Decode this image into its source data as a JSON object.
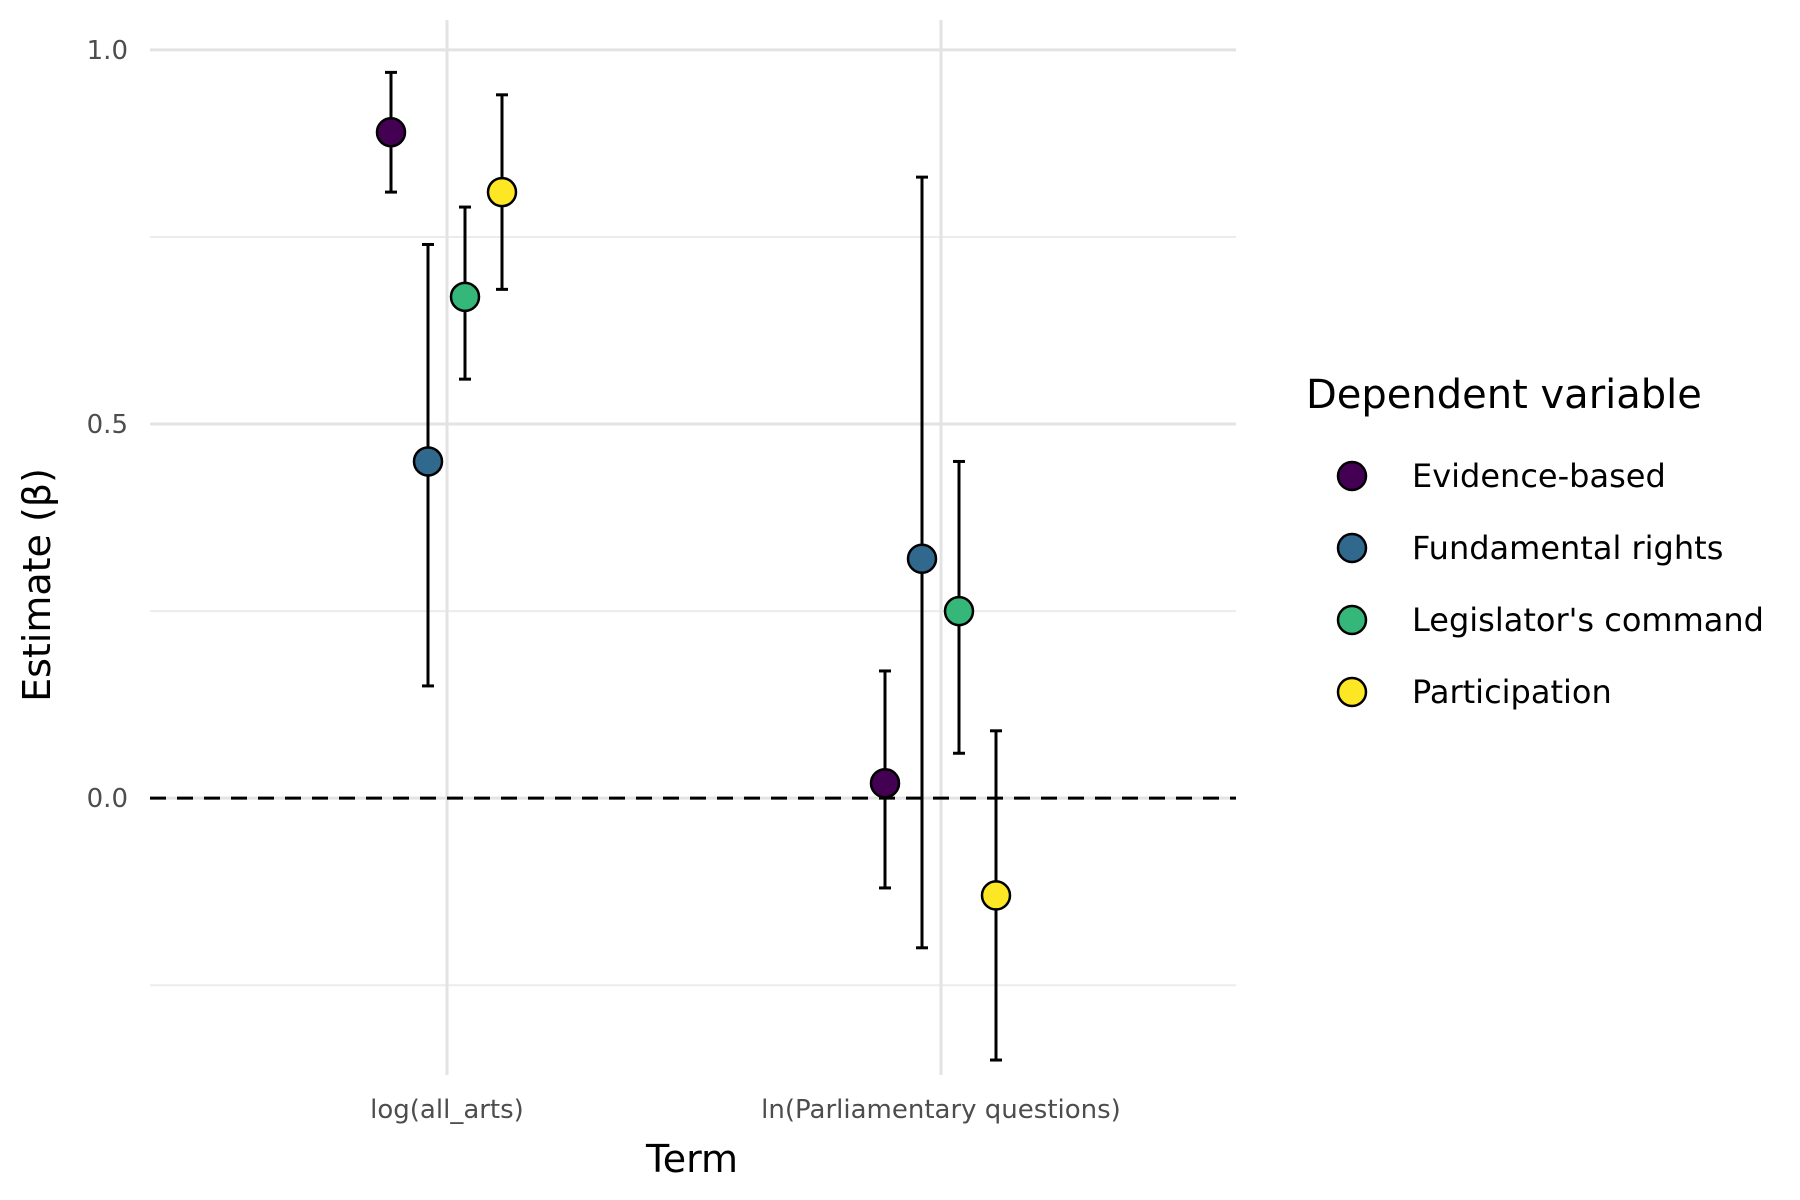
{
  "chart_data": {
    "type": "scatter",
    "xlabel": "Term",
    "ylabel": "Estimate (β)",
    "categories": [
      "log(all_arts)",
      "ln(Parliamentary questions)"
    ],
    "ylim": [
      -0.37,
      1.04
    ],
    "yticks": [
      "1.0",
      "0.5",
      "0.0"
    ],
    "grid": true,
    "reference_line": {
      "y": 0.0,
      "style": "dashed"
    },
    "legend": {
      "title": "Dependent variable",
      "placement": "right"
    },
    "series": [
      {
        "name": "Evidence-based",
        "color": "#440154",
        "values": [
          0.89,
          0.02
        ],
        "lower": [
          0.81,
          -0.12
        ],
        "upper": [
          0.97,
          0.17
        ]
      },
      {
        "name": "Fundamental rights",
        "color": "#31688e",
        "values": [
          0.45,
          0.32
        ],
        "lower": [
          0.15,
          -0.2
        ],
        "upper": [
          0.74,
          0.83
        ]
      },
      {
        "name": "Legislator's command",
        "color": "#35b779",
        "values": [
          0.67,
          0.25
        ],
        "lower": [
          0.56,
          0.06
        ],
        "upper": [
          0.79,
          0.45
        ]
      },
      {
        "name": "Participation",
        "color": "#fde725",
        "values": [
          0.81,
          -0.13
        ],
        "lower": [
          0.68,
          -0.35
        ],
        "upper": [
          0.94,
          0.09
        ]
      }
    ]
  }
}
